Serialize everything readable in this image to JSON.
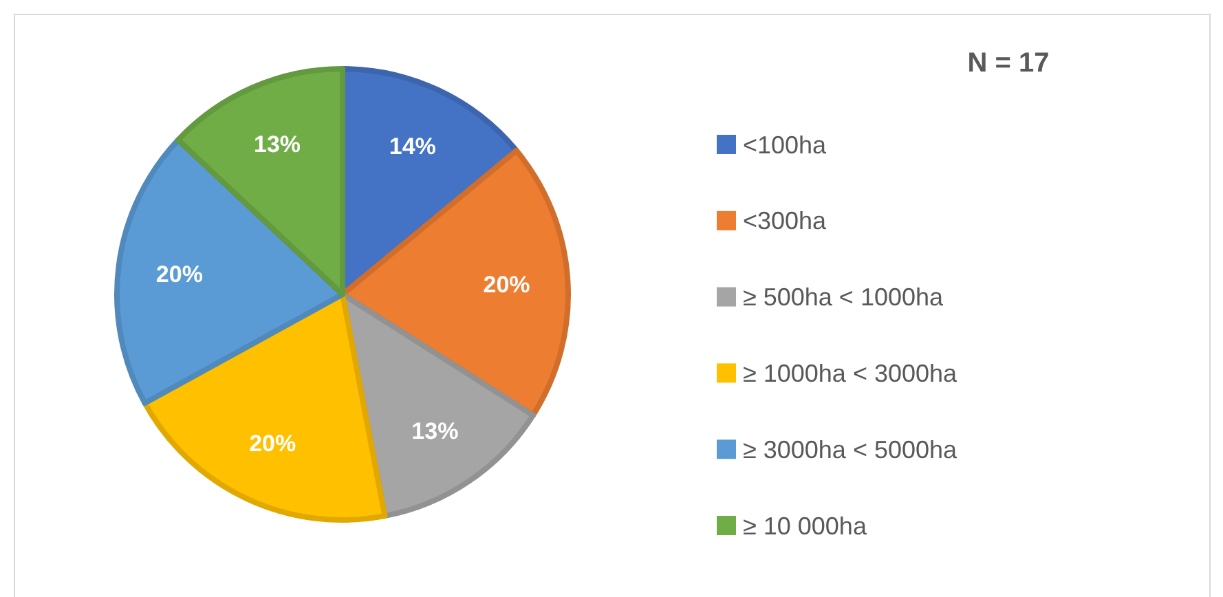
{
  "chart_data": {
    "type": "pie",
    "title": "N = 17",
    "categories": [
      "<100ha",
      "<300ha",
      "≥ 500ha < 1000ha",
      "≥ 1000ha < 3000ha",
      "≥ 3000ha < 5000ha",
      "≥ 10 000ha"
    ],
    "values": [
      14,
      20,
      13,
      20,
      20,
      13
    ],
    "value_labels": [
      "14%",
      "20%",
      "13%",
      "20%",
      "20%",
      "13%"
    ],
    "colors": [
      "#4472c4",
      "#ed7d31",
      "#a5a5a5",
      "#ffc000",
      "#5b9bd5",
      "#70ad47"
    ],
    "legend": "right"
  }
}
